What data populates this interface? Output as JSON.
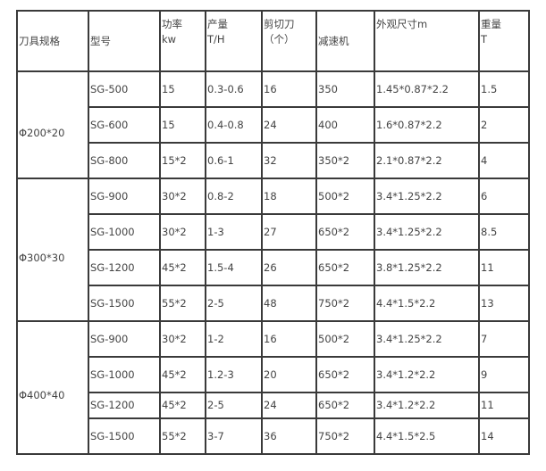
{
  "headers": [
    {
      "l1": "刀具规格",
      "l2": ""
    },
    {
      "l1": "型号",
      "l2": ""
    },
    {
      "l1": "功率",
      "l2": "kw"
    },
    {
      "l1": "产量",
      "l2": "T/H"
    },
    {
      "l1": "剪切刀",
      "l2": "（个）"
    },
    {
      "l1": "减速机",
      "l2": ""
    },
    {
      "l1": "外观尺寸m",
      "l2": ""
    },
    {
      "l1": "重量",
      "l2": "T"
    }
  ],
  "groups": [
    {
      "spec": "Φ200*20",
      "rows": [
        [
          "SG-500",
          "15",
          "0.3-0.6",
          "16",
          "350",
          "1.45*0.87*2.2",
          "1.5"
        ],
        [
          "SG-600",
          "15",
          "0.4-0.8",
          "24",
          "400",
          "1.6*0.87*2.2",
          "2"
        ],
        [
          "SG-800",
          "15*2",
          "0.6-1",
          "32",
          "350*2",
          "2.1*0.87*2.2",
          "4"
        ]
      ]
    },
    {
      "spec": "Φ300*30",
      "rows": [
        [
          "SG-900",
          "30*2",
          "0.8-2",
          "18",
          "500*2",
          "3.4*1.25*2.2",
          "6"
        ],
        [
          "SG-1000",
          "30*2",
          "1-3",
          "27",
          "650*2",
          "3.4*1.25*2.2",
          "8.5"
        ],
        [
          "SG-1200",
          "45*2",
          "1.5-4",
          "26",
          "650*2",
          "3.8*1.25*2.2",
          "11"
        ],
        [
          "SG-1500",
          "55*2",
          "2-5",
          "48",
          "750*2",
          "4.4*1.5*2.2",
          "13"
        ]
      ]
    },
    {
      "spec": "Φ400*40",
      "rows": [
        [
          "SG-900",
          "30*2",
          "1-2",
          "16",
          "500*2",
          "3.4*1.25*2.2",
          "7"
        ],
        [
          "SG-1000",
          "45*2",
          "1.2-3",
          "20",
          "650*2",
          "3.4*1.2*2.2",
          "9"
        ],
        [
          "SG-1200",
          "45*2",
          "2-5",
          "24",
          "650*2",
          "3.4*1.2*2.2",
          "11"
        ],
        [
          "SG-1500",
          "55*2",
          "3-7",
          "36",
          "750*2",
          "4.4*1.5*2.5",
          "14"
        ]
      ]
    }
  ]
}
